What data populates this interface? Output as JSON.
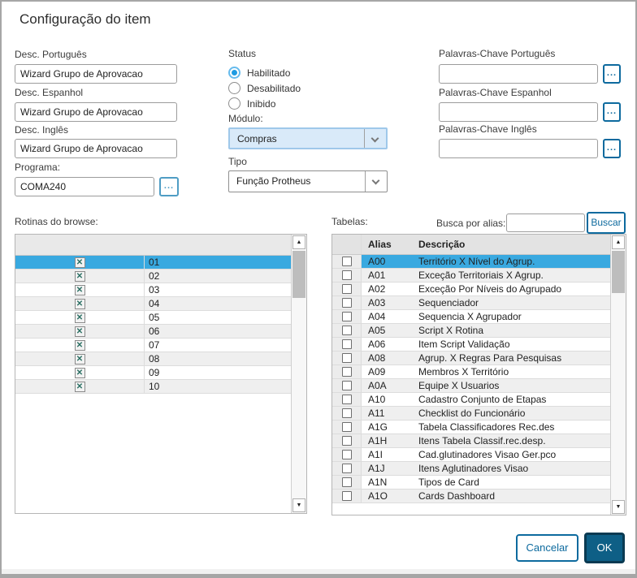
{
  "dialog": {
    "title": "Configuração do item"
  },
  "form": {
    "desc_pt": {
      "label": "Desc. Português",
      "value": "Wizard Grupo de Aprovacao"
    },
    "desc_es": {
      "label": "Desc. Espanhol",
      "value": "Wizard Grupo de Aprovacao"
    },
    "desc_en": {
      "label": "Desc. Inglês",
      "value": "Wizard Grupo de Aprovacao"
    },
    "programa": {
      "label": "Programa:",
      "value": "COMA240",
      "browse_label": "..."
    },
    "status": {
      "label": "Status",
      "options": [
        {
          "label": "Habilitado",
          "selected": true
        },
        {
          "label": "Desabilitado",
          "selected": false
        },
        {
          "label": "Inibido",
          "selected": false
        }
      ]
    },
    "modulo": {
      "label": "Módulo:",
      "value": "Compras"
    },
    "tipo": {
      "label": "Tipo",
      "value": "Função Protheus"
    },
    "kw_pt": {
      "label": "Palavras-Chave Português",
      "value": "",
      "browse_label": "..."
    },
    "kw_es": {
      "label": "Palavras-Chave Espanhol",
      "value": "",
      "browse_label": "..."
    },
    "kw_en": {
      "label": "Palavras-Chave Inglês",
      "value": "",
      "browse_label": "..."
    }
  },
  "rotinas": {
    "label": "Rotinas do browse:",
    "rows": [
      {
        "icon": "x-checked-icon",
        "code": "01",
        "selected": true
      },
      {
        "icon": "x-checked-icon",
        "code": "02",
        "selected": false
      },
      {
        "icon": "x-checked-icon",
        "code": "03",
        "selected": false
      },
      {
        "icon": "x-checked-icon",
        "code": "04",
        "selected": false
      },
      {
        "icon": "x-checked-icon",
        "code": "05",
        "selected": false
      },
      {
        "icon": "x-checked-icon",
        "code": "06",
        "selected": false
      },
      {
        "icon": "x-checked-icon",
        "code": "07",
        "selected": false
      },
      {
        "icon": "x-checked-icon",
        "code": "08",
        "selected": false
      },
      {
        "icon": "x-checked-icon",
        "code": "09",
        "selected": false
      },
      {
        "icon": "x-checked-icon",
        "code": "10",
        "selected": false
      }
    ]
  },
  "tabelas": {
    "label": "Tabelas:",
    "search_label": "Busca por alias:",
    "search_value": "",
    "buscar_label": "Buscar",
    "columns": {
      "alias": "Alias",
      "descricao": "Descrição"
    },
    "rows": [
      {
        "alias": "A00",
        "descricao": "Território X Nível do Agrup.",
        "checked": false,
        "selected": true
      },
      {
        "alias": "A01",
        "descricao": "Exceção Territoriais X Agrup.",
        "checked": false,
        "selected": false
      },
      {
        "alias": "A02",
        "descricao": "Exceção Por Níveis do Agrupado",
        "checked": false,
        "selected": false
      },
      {
        "alias": "A03",
        "descricao": "Sequenciador",
        "checked": false,
        "selected": false
      },
      {
        "alias": "A04",
        "descricao": "Sequencia X Agrupador",
        "checked": false,
        "selected": false
      },
      {
        "alias": "A05",
        "descricao": "Script X Rotina",
        "checked": false,
        "selected": false
      },
      {
        "alias": "A06",
        "descricao": "Item Script Validação",
        "checked": false,
        "selected": false
      },
      {
        "alias": "A08",
        "descricao": "Agrup. X Regras Para Pesquisas",
        "checked": false,
        "selected": false
      },
      {
        "alias": "A09",
        "descricao": "Membros X Território",
        "checked": false,
        "selected": false
      },
      {
        "alias": "A0A",
        "descricao": "Equipe X Usuarios",
        "checked": false,
        "selected": false
      },
      {
        "alias": "A10",
        "descricao": "Cadastro Conjunto de Etapas",
        "checked": false,
        "selected": false
      },
      {
        "alias": "A11",
        "descricao": "Checklist do Funcionário",
        "checked": false,
        "selected": false
      },
      {
        "alias": "A1G",
        "descricao": "Tabela Classificadores Rec.des",
        "checked": false,
        "selected": false
      },
      {
        "alias": "A1H",
        "descricao": "Itens Tabela Classif.rec.desp.",
        "checked": false,
        "selected": false
      },
      {
        "alias": "A1I",
        "descricao": "Cad.glutinadores Visao Ger.pco",
        "checked": false,
        "selected": false
      },
      {
        "alias": "A1J",
        "descricao": "Itens Aglutinadores Visao",
        "checked": false,
        "selected": false
      },
      {
        "alias": "A1N",
        "descricao": "Tipos de Card",
        "checked": false,
        "selected": false
      },
      {
        "alias": "A1O",
        "descricao": "Cards Dashboard",
        "checked": false,
        "selected": false
      }
    ]
  },
  "footer": {
    "cancel_label": "Cancelar",
    "ok_label": "OK"
  },
  "colors": {
    "selection": "#39a9e0",
    "accent": "#0d6a9e",
    "ok_fill": "#0e5f86",
    "focus_fill": "#d9eaf9"
  }
}
